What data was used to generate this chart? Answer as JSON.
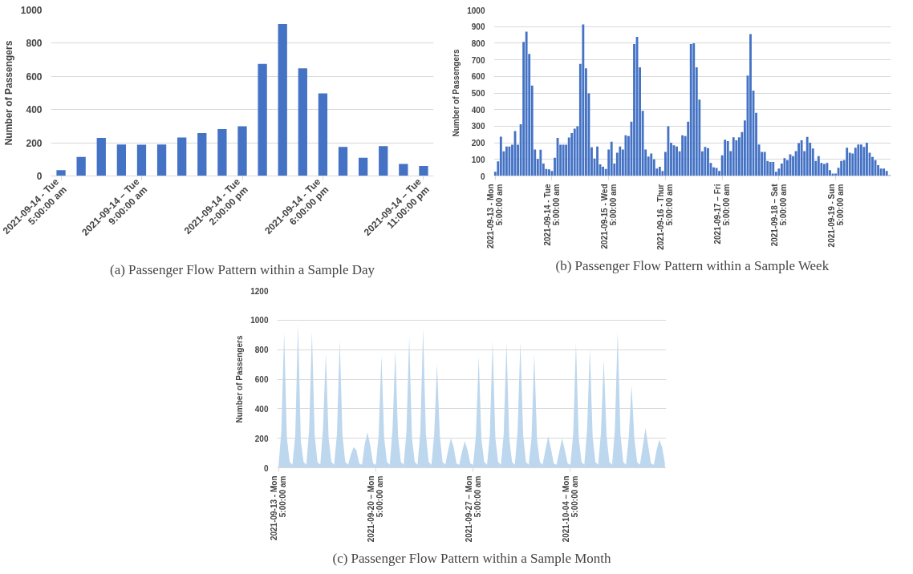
{
  "chart_data": [
    {
      "type": "bar",
      "title": "(a) Passenger Flow Pattern within a Sample Day",
      "ylabel": "Number of Passengers",
      "categories": [
        "2021-09-14 - Tue\n5:00:00 am",
        null,
        null,
        null,
        "2021-09-14 – Tue\n9:00:00 am",
        null,
        null,
        null,
        null,
        "2021-09-14 - Tue\n2:00:00 pm",
        null,
        null,
        null,
        "2021-09-14 - Tue\n6:00:00 pm",
        null,
        null,
        null,
        null,
        "2021-09-14 – Tue\n11:00:00 pm"
      ],
      "series": [
        {
          "color": "#4472c4",
          "values": [
            35,
            115,
            230,
            190,
            188,
            190,
            232,
            258,
            283,
            300,
            675,
            915,
            648,
            497,
            175,
            110,
            180,
            72,
            60
          ]
        }
      ],
      "ylim": [
        0,
        1000
      ],
      "yticks": [
        0,
        200,
        400,
        600,
        800,
        1000
      ],
      "grid": "y"
    },
    {
      "type": "bar",
      "title": "(b) Passenger Flow Pattern within a Sample Week",
      "ylabel": "Number of Passengers",
      "categories": [
        "2021-09-13 - Mon\n5:00:00 am",
        null,
        null,
        null,
        null,
        null,
        null,
        null,
        null,
        null,
        null,
        null,
        null,
        null,
        null,
        null,
        null,
        null,
        null,
        null,
        "2021-09-14 - Tue\n5:00:00 am",
        null,
        null,
        null,
        null,
        null,
        null,
        null,
        null,
        null,
        null,
        null,
        null,
        null,
        null,
        null,
        null,
        null,
        null,
        null,
        "2021-09-15 - Wed\n5:00:00 am",
        null,
        null,
        null,
        null,
        null,
        null,
        null,
        null,
        null,
        null,
        null,
        null,
        null,
        null,
        null,
        null,
        null,
        null,
        null,
        "2021-09-16 - Thur\n5:00:00 am",
        null,
        null,
        null,
        null,
        null,
        null,
        null,
        null,
        null,
        null,
        null,
        null,
        null,
        null,
        null,
        null,
        null,
        null,
        null,
        "2021-09-17 – Fri\n5:00:00 am",
        null,
        null,
        null,
        null,
        null,
        null,
        null,
        null,
        null,
        null,
        null,
        null,
        null,
        null,
        null,
        null,
        null,
        null,
        null,
        "2021-09-18 – Sat\n5:00:00 am",
        null,
        null,
        null,
        null,
        null,
        null,
        null,
        null,
        null,
        null,
        null,
        null,
        null,
        null,
        null,
        null,
        null,
        null,
        null,
        "2021-09-19 - Sun\n5:00:00 am",
        null,
        null,
        null,
        null,
        null,
        null,
        null,
        null,
        null,
        null,
        null,
        null,
        null,
        null,
        null,
        null,
        null,
        null,
        null
      ],
      "series": [
        {
          "color": "#4472c4",
          "values": [
            25,
            88,
            237,
            148,
            178,
            178,
            188,
            270,
            188,
            312,
            808,
            870,
            735,
            545,
            160,
            103,
            158,
            75,
            42,
            40,
            30,
            110,
            230,
            188,
            188,
            188,
            232,
            258,
            285,
            300,
            675,
            913,
            648,
            497,
            173,
            105,
            178,
            70,
            55,
            42,
            160,
            207,
            75,
            140,
            178,
            160,
            245,
            240,
            327,
            795,
            838,
            655,
            393,
            160,
            117,
            135,
            100,
            45,
            55,
            30,
            145,
            300,
            200,
            185,
            178,
            148,
            245,
            240,
            327,
            795,
            800,
            655,
            460,
            148,
            175,
            168,
            78,
            52,
            48,
            30,
            125,
            218,
            210,
            150,
            233,
            215,
            233,
            265,
            335,
            605,
            855,
            515,
            380,
            190,
            145,
            145,
            90,
            85,
            85,
            25,
            45,
            75,
            108,
            95,
            130,
            120,
            150,
            198,
            215,
            150,
            235,
            200,
            165,
            90,
            120,
            78,
            72,
            78,
            35,
            15,
            15,
            50,
            90,
            95,
            170,
            140,
            135,
            170,
            190,
            190,
            175,
            200,
            140,
            115,
            95,
            65,
            45,
            45,
            30,
            5
          ]
        }
      ],
      "ylim": [
        0,
        1000
      ],
      "yticks": [
        0,
        100,
        200,
        300,
        400,
        500,
        600,
        700,
        800,
        900,
        1000
      ],
      "grid": "y"
    },
    {
      "type": "area",
      "title": "(c) Passenger Flow Pattern within a Sample Month",
      "ylabel": "Number of Passengers",
      "categories": [
        "2021-09-13 - Mon\n5:00:00 am",
        null,
        null,
        null,
        null,
        null,
        null,
        null,
        null,
        null,
        null,
        null,
        null,
        null,
        null,
        null,
        null,
        null,
        null,
        null,
        null,
        null,
        null,
        null,
        null,
        null,
        null,
        null,
        null,
        null,
        null,
        null,
        null,
        null,
        null,
        "2021-09-20 – Mon\n5:00:00 am",
        null,
        null,
        null,
        null,
        null,
        null,
        null,
        null,
        null,
        null,
        null,
        null,
        null,
        null,
        null,
        null,
        null,
        null,
        null,
        null,
        null,
        null,
        null,
        null,
        null,
        null,
        null,
        null,
        null,
        null,
        null,
        null,
        null,
        null,
        "2021-09-27 – Mon\n5:00:00 am",
        null,
        null,
        null,
        null,
        null,
        null,
        null,
        null,
        null,
        null,
        null,
        null,
        null,
        null,
        null,
        null,
        null,
        null,
        null,
        null,
        null,
        null,
        null,
        null,
        null,
        null,
        null,
        null,
        null,
        null,
        null,
        null,
        null,
        null,
        "2021-10-04 – Mon\n5:00:00 am",
        null,
        null,
        null,
        null,
        null,
        null,
        null,
        null,
        null,
        null,
        null,
        null,
        null,
        null,
        null,
        null,
        null,
        null,
        null,
        null,
        null,
        null,
        null,
        null,
        null,
        null,
        null,
        null,
        null,
        null,
        null,
        null,
        null,
        null
      ],
      "series": [
        {
          "color": "#bdd7ee",
          "values": [
            20,
            250,
            920,
            200,
            40,
            20,
            220,
            975,
            180,
            40,
            20,
            260,
            925,
            220,
            40,
            20,
            270,
            780,
            200,
            40,
            20,
            230,
            870,
            220,
            40,
            20,
            90,
            140,
            120,
            30,
            20,
            160,
            240,
            150,
            30,
            20,
            220,
            760,
            200,
            40,
            20,
            260,
            795,
            210,
            40,
            20,
            240,
            890,
            200,
            40,
            20,
            240,
            945,
            230,
            40,
            20,
            230,
            705,
            220,
            40,
            20,
            120,
            200,
            140,
            30,
            20,
            110,
            180,
            120,
            30,
            20,
            220,
            755,
            190,
            40,
            20,
            220,
            860,
            200,
            40,
            20,
            230,
            850,
            200,
            40,
            20,
            250,
            855,
            220,
            40,
            20,
            200,
            775,
            190,
            40,
            20,
            120,
            215,
            130,
            30,
            20,
            110,
            200,
            120,
            30,
            20,
            230,
            850,
            200,
            40,
            20,
            260,
            810,
            210,
            40,
            20,
            240,
            735,
            220,
            40,
            20,
            260,
            925,
            230,
            40,
            20,
            210,
            560,
            200,
            40,
            20,
            140,
            270,
            150,
            30,
            20,
            120,
            190,
            140,
            30
          ]
        }
      ],
      "ylim": [
        0,
        1200
      ],
      "yticks": [
        0,
        200,
        400,
        600,
        800,
        1000,
        1200
      ],
      "grid": "y"
    }
  ]
}
